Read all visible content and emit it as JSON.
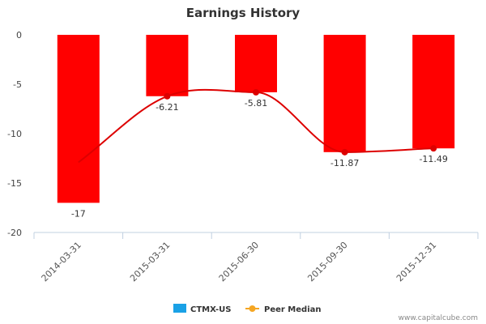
{
  "chart_data": {
    "type": "bar",
    "title": "Earnings History",
    "categories": [
      "2014-03-31",
      "2015-03-31",
      "2015-06-30",
      "2015-09-30",
      "2015-12-31"
    ],
    "series": [
      {
        "name": "CTMX-US",
        "kind": "bar",
        "values": [
          -17,
          -6.21,
          -5.81,
          -11.87,
          -11.49
        ],
        "value_labels": [
          "-17",
          "-6.21",
          "-5.81",
          "-11.87",
          "-11.49"
        ]
      },
      {
        "name": "Peer Median",
        "kind": "line",
        "values": [
          -12.9,
          -6.21,
          -5.81,
          -11.87,
          -11.49
        ]
      }
    ],
    "ylim": [
      -20,
      0
    ],
    "yticks": [
      0,
      -5,
      -10,
      -15,
      -20
    ],
    "xlabel": "",
    "ylabel": "",
    "legend_position": "bottom-center",
    "grid": false
  },
  "colors": {
    "bar": "#ff0000",
    "line": "#dd0000",
    "legend_bar_swatch": "#1aa1e6",
    "legend_line_swatch": "#f5a623",
    "axis": "#c0d0e0"
  },
  "credit": "www.capitalcube.com"
}
